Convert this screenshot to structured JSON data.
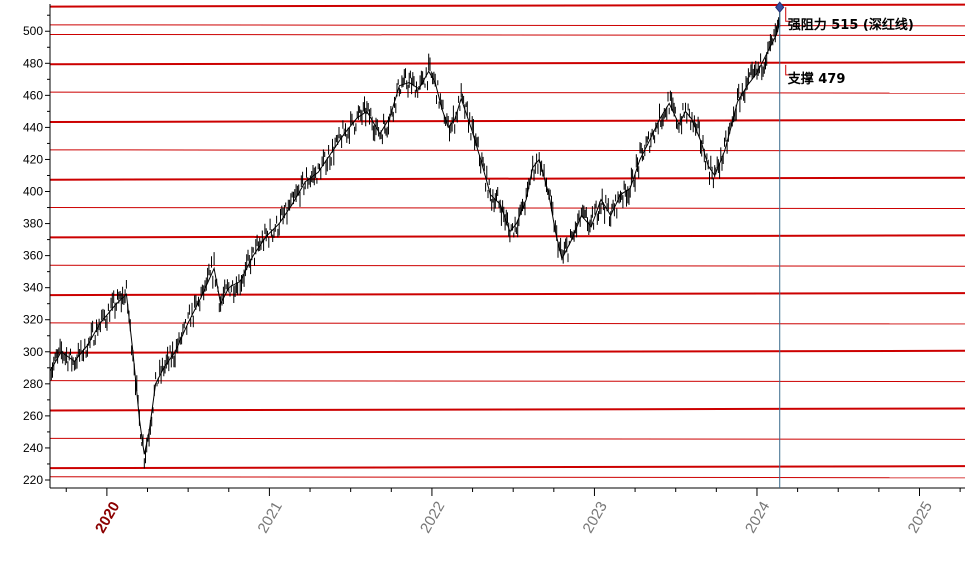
{
  "chart_data": {
    "type": "line",
    "title": "",
    "xlabel": "",
    "ylabel": "",
    "ylim": [
      215,
      517
    ],
    "xlim": [
      2019.65,
      2025.28
    ],
    "yticks": [
      220,
      240,
      260,
      280,
      300,
      320,
      340,
      360,
      380,
      400,
      420,
      440,
      460,
      480,
      500
    ],
    "ytick_labels": [
      "220",
      "240",
      "260",
      "280",
      "300",
      "320",
      "340",
      "360",
      "380",
      "400",
      "420",
      "440",
      "460",
      "480",
      "500"
    ],
    "xticks": [
      2020,
      2021,
      2022,
      2023,
      2024,
      2025
    ],
    "xtick_labels": [
      "2020",
      "2021",
      "2022",
      "2023",
      "2024",
      "2025"
    ],
    "highlighted_xtick": "2020",
    "grid": true,
    "horizontal_lines": {
      "color": "#cc0000",
      "thick_levels": [
        228,
        264,
        300,
        336,
        372,
        408,
        444,
        480,
        516
      ],
      "thin_levels": [
        222,
        246,
        282,
        318,
        354,
        390,
        426,
        462,
        498,
        504
      ]
    },
    "price_series": {
      "name": "",
      "color": "#000000",
      "x": [
        2019.65,
        2019.72,
        2019.8,
        2019.88,
        2019.96,
        2020.05,
        2020.12,
        2020.16,
        2020.2,
        2020.23,
        2020.26,
        2020.3,
        2020.35,
        2020.42,
        2020.5,
        2020.58,
        2020.66,
        2020.7,
        2020.75,
        2020.82,
        2020.9,
        2020.98,
        2021.06,
        2021.14,
        2021.22,
        2021.3,
        2021.38,
        2021.46,
        2021.54,
        2021.6,
        2021.68,
        2021.74,
        2021.8,
        2021.86,
        2021.92,
        2021.98,
        2022.02,
        2022.06,
        2022.1,
        2022.14,
        2022.18,
        2022.24,
        2022.3,
        2022.36,
        2022.42,
        2022.48,
        2022.52,
        2022.58,
        2022.62,
        2022.66,
        2022.72,
        2022.76,
        2022.8,
        2022.86,
        2022.92,
        2022.98,
        2023.04,
        2023.1,
        2023.16,
        2023.22,
        2023.28,
        2023.34,
        2023.4,
        2023.46,
        2023.52,
        2023.56,
        2023.6,
        2023.66,
        2023.7,
        2023.74,
        2023.8,
        2023.84,
        2023.88,
        2023.94,
        2024.0,
        2024.06,
        2024.12,
        2024.14
      ],
      "values": [
        288,
        300,
        294,
        304,
        318,
        329,
        336,
        300,
        258,
        236,
        250,
        280,
        290,
        300,
        318,
        334,
        352,
        330,
        340,
        344,
        360,
        372,
        380,
        392,
        406,
        412,
        424,
        436,
        446,
        450,
        436,
        446,
        466,
        468,
        464,
        475,
        468,
        452,
        440,
        445,
        458,
        440,
        420,
        398,
        392,
        375,
        380,
        395,
        415,
        420,
        398,
        375,
        358,
        370,
        385,
        378,
        395,
        385,
        398,
        402,
        420,
        432,
        445,
        455,
        442,
        450,
        445,
        430,
        416,
        410,
        425,
        440,
        456,
        466,
        474,
        486,
        498,
        505
      ]
    },
    "cursor": {
      "x": 2024.14,
      "y": 515,
      "color": "#3a6b8c"
    },
    "annotations": [
      {
        "text": "强阻力 515 (深红线)",
        "y": 515
      },
      {
        "text": "支撑 479",
        "y": 479
      }
    ]
  }
}
